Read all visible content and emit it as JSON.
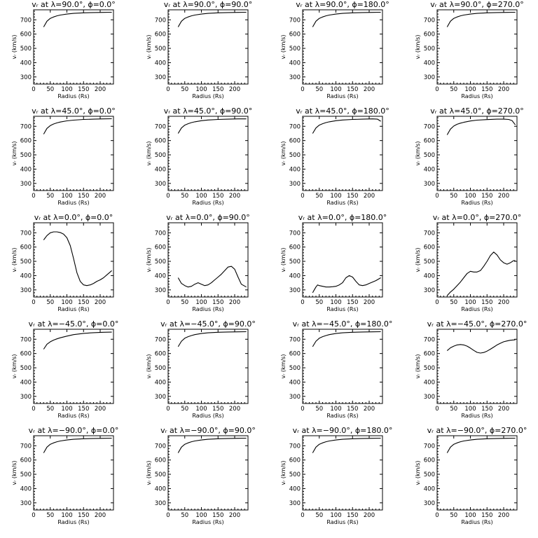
{
  "xlabel": "Radius (Rs)",
  "ylabel": "vᵣ (km/s)",
  "xlim": [
    0,
    240
  ],
  "ylim": [
    250,
    770
  ],
  "xticks": [
    "0",
    "50",
    "100",
    "150",
    "200"
  ],
  "yticks": [
    "300",
    "400",
    "500",
    "600",
    "700"
  ],
  "chart_data": [
    {
      "type": "line",
      "title": "vᵣ at λ=90.0°, ϕ=0.0°",
      "xlabel": "Radius (Rs)",
      "ylabel": "vᵣ (km/s)",
      "xlim": [
        0,
        240
      ],
      "ylim": [
        250,
        770
      ],
      "series": [
        {
          "x": [
            30,
            40,
            50,
            60,
            70,
            80,
            100,
            120,
            150,
            180,
            210,
            235
          ],
          "y": [
            650,
            690,
            710,
            720,
            728,
            733,
            740,
            745,
            749,
            751,
            752,
            753
          ]
        }
      ]
    },
    {
      "type": "line",
      "title": "vᵣ at λ=90.0°, ϕ=90.0°",
      "xlabel": "Radius (Rs)",
      "ylabel": "vᵣ (km/s)",
      "xlim": [
        0,
        240
      ],
      "ylim": [
        250,
        770
      ],
      "series": [
        {
          "x": [
            30,
            40,
            50,
            60,
            70,
            80,
            100,
            120,
            150,
            180,
            210,
            235
          ],
          "y": [
            650,
            690,
            710,
            720,
            728,
            733,
            740,
            745,
            749,
            751,
            752,
            753
          ]
        }
      ]
    },
    {
      "type": "line",
      "title": "vᵣ at λ=90.0°, ϕ=180.0°",
      "xlabel": "Radius (Rs)",
      "ylabel": "vᵣ (km/s)",
      "xlim": [
        0,
        240
      ],
      "ylim": [
        250,
        770
      ],
      "series": [
        {
          "x": [
            30,
            40,
            50,
            60,
            70,
            80,
            100,
            120,
            150,
            180,
            210,
            235
          ],
          "y": [
            650,
            690,
            710,
            720,
            728,
            733,
            740,
            745,
            749,
            751,
            752,
            753
          ]
        }
      ]
    },
    {
      "type": "line",
      "title": "vᵣ at λ=90.0°, ϕ=270.0°",
      "xlabel": "Radius (Rs)",
      "ylabel": "vᵣ (km/s)",
      "xlim": [
        0,
        240
      ],
      "ylim": [
        250,
        770
      ],
      "series": [
        {
          "x": [
            30,
            40,
            50,
            60,
            70,
            80,
            100,
            120,
            150,
            180,
            210,
            235
          ],
          "y": [
            650,
            690,
            710,
            720,
            728,
            733,
            740,
            745,
            749,
            751,
            752,
            753
          ]
        }
      ]
    },
    {
      "type": "line",
      "title": "vᵣ at λ=45.0°, ϕ=0.0°",
      "xlabel": "Radius (Rs)",
      "ylabel": "vᵣ (km/s)",
      "xlim": [
        0,
        240
      ],
      "ylim": [
        250,
        770
      ],
      "series": [
        {
          "x": [
            30,
            40,
            50,
            60,
            70,
            80,
            100,
            120,
            150,
            180,
            210,
            235
          ],
          "y": [
            645,
            685,
            705,
            716,
            724,
            730,
            738,
            743,
            748,
            750,
            752,
            753
          ]
        }
      ]
    },
    {
      "type": "line",
      "title": "vᵣ at λ=45.0°, ϕ=90.0°",
      "xlabel": "Radius (Rs)",
      "ylabel": "vᵣ (km/s)",
      "xlim": [
        0,
        240
      ],
      "ylim": [
        250,
        770
      ],
      "series": [
        {
          "x": [
            30,
            40,
            50,
            60,
            70,
            80,
            100,
            120,
            150,
            180,
            210,
            235
          ],
          "y": [
            650,
            688,
            708,
            718,
            726,
            731,
            739,
            744,
            748,
            750,
            752,
            752
          ]
        }
      ]
    },
    {
      "type": "line",
      "title": "vᵣ at λ=45.0°, ϕ=180.0°",
      "xlabel": "Radius (Rs)",
      "ylabel": "vᵣ (km/s)",
      "xlim": [
        0,
        240
      ],
      "ylim": [
        250,
        770
      ],
      "series": [
        {
          "x": [
            30,
            40,
            50,
            60,
            70,
            80,
            100,
            120,
            150,
            180,
            210,
            225,
            235
          ],
          "y": [
            650,
            688,
            708,
            718,
            726,
            731,
            739,
            744,
            748,
            750,
            752,
            750,
            735
          ]
        }
      ]
    },
    {
      "type": "line",
      "title": "vᵣ at λ=45.0°, ϕ=270.0°",
      "xlabel": "Radius (Rs)",
      "ylabel": "vᵣ (km/s)",
      "xlim": [
        0,
        240
      ],
      "ylim": [
        250,
        770
      ],
      "series": [
        {
          "x": [
            30,
            40,
            50,
            60,
            70,
            80,
            100,
            120,
            150,
            180,
            200,
            215,
            225,
            235
          ],
          "y": [
            640,
            680,
            702,
            714,
            722,
            728,
            737,
            743,
            747,
            750,
            750,
            748,
            740,
            710
          ]
        }
      ]
    },
    {
      "type": "line",
      "title": "vᵣ at λ=0.0°, ϕ=0.0°",
      "xlabel": "Radius (Rs)",
      "ylabel": "vᵣ (km/s)",
      "xlim": [
        0,
        240
      ],
      "ylim": [
        250,
        770
      ],
      "series": [
        {
          "x": [
            30,
            40,
            50,
            60,
            70,
            80,
            90,
            100,
            110,
            120,
            130,
            140,
            150,
            160,
            170,
            180,
            190,
            200,
            210,
            220,
            235
          ],
          "y": [
            650,
            680,
            700,
            706,
            706,
            702,
            690,
            665,
            610,
            520,
            420,
            360,
            335,
            330,
            335,
            345,
            360,
            370,
            385,
            405,
            435
          ]
        }
      ]
    },
    {
      "type": "line",
      "title": "vᵣ at λ=0.0°, ϕ=90.0°",
      "xlabel": "Radius (Rs)",
      "ylabel": "vᵣ (km/s)",
      "xlim": [
        0,
        240
      ],
      "ylim": [
        250,
        770
      ],
      "series": [
        {
          "x": [
            30,
            40,
            50,
            60,
            70,
            80,
            90,
            100,
            110,
            120,
            130,
            140,
            150,
            160,
            170,
            180,
            190,
            200,
            210,
            220,
            235
          ],
          "y": [
            385,
            345,
            330,
            320,
            325,
            340,
            350,
            340,
            330,
            335,
            350,
            370,
            390,
            410,
            435,
            460,
            465,
            445,
            390,
            340,
            320
          ]
        }
      ]
    },
    {
      "type": "line",
      "title": "vᵣ at λ=0.0°, ϕ=180.0°",
      "xlabel": "Radius (Rs)",
      "ylabel": "vᵣ (km/s)",
      "xlim": [
        0,
        240
      ],
      "ylim": [
        250,
        770
      ],
      "series": [
        {
          "x": [
            30,
            35,
            40,
            45,
            50,
            60,
            70,
            80,
            90,
            100,
            110,
            120,
            130,
            140,
            150,
            160,
            170,
            180,
            190,
            200,
            210,
            220,
            235
          ],
          "y": [
            280,
            300,
            320,
            335,
            330,
            325,
            320,
            320,
            322,
            325,
            335,
            350,
            385,
            400,
            390,
            360,
            335,
            330,
            335,
            345,
            355,
            365,
            385
          ]
        }
      ]
    },
    {
      "type": "line",
      "title": "vᵣ at λ=0.0°, ϕ=270.0°",
      "xlabel": "Radius (Rs)",
      "ylabel": "vᵣ (km/s)",
      "xlim": [
        0,
        240
      ],
      "ylim": [
        250,
        770
      ],
      "series": [
        {
          "x": [
            30,
            40,
            50,
            60,
            70,
            80,
            90,
            100,
            110,
            120,
            130,
            140,
            150,
            160,
            170,
            180,
            190,
            200,
            210,
            220,
            230,
            235
          ],
          "y": [
            260,
            285,
            305,
            330,
            355,
            385,
            415,
            430,
            425,
            425,
            435,
            465,
            500,
            540,
            565,
            545,
            510,
            490,
            480,
            490,
            505,
            505
          ]
        }
      ]
    },
    {
      "type": "line",
      "title": "vᵣ at λ=−45.0°, ϕ=0.0°",
      "xlabel": "Radius (Rs)",
      "ylabel": "vᵣ (km/s)",
      "xlim": [
        0,
        240
      ],
      "ylim": [
        250,
        770
      ],
      "series": [
        {
          "x": [
            30,
            40,
            50,
            60,
            70,
            80,
            100,
            120,
            150,
            180,
            210,
            235
          ],
          "y": [
            630,
            665,
            682,
            694,
            703,
            710,
            722,
            732,
            741,
            746,
            749,
            750
          ]
        }
      ]
    },
    {
      "type": "line",
      "title": "vᵣ at λ=−45.0°, ϕ=90.0°",
      "xlabel": "Radius (Rs)",
      "ylabel": "vᵣ (km/s)",
      "xlim": [
        0,
        240
      ],
      "ylim": [
        250,
        770
      ],
      "series": [
        {
          "x": [
            30,
            40,
            50,
            60,
            70,
            80,
            100,
            120,
            150,
            180,
            210,
            235
          ],
          "y": [
            648,
            686,
            707,
            718,
            726,
            732,
            740,
            745,
            749,
            751,
            752,
            753
          ]
        }
      ]
    },
    {
      "type": "line",
      "title": "vᵣ at λ=−45.0°, ϕ=180.0°",
      "xlabel": "Radius (Rs)",
      "ylabel": "vᵣ (km/s)",
      "xlim": [
        0,
        240
      ],
      "ylim": [
        250,
        770
      ],
      "series": [
        {
          "x": [
            30,
            40,
            50,
            60,
            70,
            80,
            100,
            120,
            150,
            180,
            210,
            235
          ],
          "y": [
            648,
            686,
            707,
            718,
            726,
            732,
            740,
            745,
            749,
            751,
            752,
            753
          ]
        }
      ]
    },
    {
      "type": "line",
      "title": "vᵣ at λ=−45.0°, ϕ=270.0°",
      "xlabel": "Radius (Rs)",
      "ylabel": "vᵣ (km/s)",
      "xlim": [
        0,
        240
      ],
      "ylim": [
        250,
        770
      ],
      "series": [
        {
          "x": [
            30,
            40,
            50,
            60,
            70,
            80,
            90,
            100,
            110,
            120,
            130,
            140,
            150,
            160,
            170,
            180,
            190,
            200,
            210,
            220,
            235
          ],
          "y": [
            620,
            640,
            652,
            660,
            663,
            660,
            652,
            638,
            622,
            608,
            603,
            607,
            617,
            630,
            645,
            660,
            672,
            682,
            688,
            693,
            696
          ]
        }
      ]
    },
    {
      "type": "line",
      "title": "vᵣ at λ=−90.0°, ϕ=0.0°",
      "xlabel": "Radius (Rs)",
      "ylabel": "vᵣ (km/s)",
      "xlim": [
        0,
        240
      ],
      "ylim": [
        250,
        770
      ],
      "series": [
        {
          "x": [
            30,
            40,
            50,
            60,
            70,
            80,
            100,
            120,
            150,
            180,
            210,
            235
          ],
          "y": [
            650,
            690,
            710,
            720,
            728,
            733,
            740,
            745,
            749,
            751,
            752,
            753
          ]
        }
      ]
    },
    {
      "type": "line",
      "title": "vᵣ at λ=−90.0°, ϕ=90.0°",
      "xlabel": "Radius (Rs)",
      "ylabel": "vᵣ (km/s)",
      "xlim": [
        0,
        240
      ],
      "ylim": [
        250,
        770
      ],
      "series": [
        {
          "x": [
            30,
            40,
            50,
            60,
            70,
            80,
            100,
            120,
            150,
            180,
            210,
            235
          ],
          "y": [
            650,
            690,
            710,
            720,
            728,
            733,
            740,
            745,
            749,
            751,
            752,
            753
          ]
        }
      ]
    },
    {
      "type": "line",
      "title": "vᵣ at λ=−90.0°, ϕ=180.0°",
      "xlabel": "Radius (Rs)",
      "ylabel": "vᵣ (km/s)",
      "xlim": [
        0,
        240
      ],
      "ylim": [
        250,
        770
      ],
      "series": [
        {
          "x": [
            30,
            40,
            50,
            60,
            70,
            80,
            100,
            120,
            150,
            180,
            210,
            235
          ],
          "y": [
            650,
            690,
            710,
            720,
            728,
            733,
            740,
            745,
            749,
            751,
            752,
            753
          ]
        }
      ]
    },
    {
      "type": "line",
      "title": "vᵣ at λ=−90.0°, ϕ=270.0°",
      "xlabel": "Radius (Rs)",
      "ylabel": "vᵣ (km/s)",
      "xlim": [
        0,
        240
      ],
      "ylim": [
        250,
        770
      ],
      "series": [
        {
          "x": [
            30,
            40,
            50,
            60,
            70,
            80,
            100,
            120,
            150,
            180,
            210,
            235
          ],
          "y": [
            650,
            690,
            710,
            720,
            728,
            733,
            740,
            745,
            749,
            751,
            752,
            753
          ]
        }
      ]
    }
  ]
}
